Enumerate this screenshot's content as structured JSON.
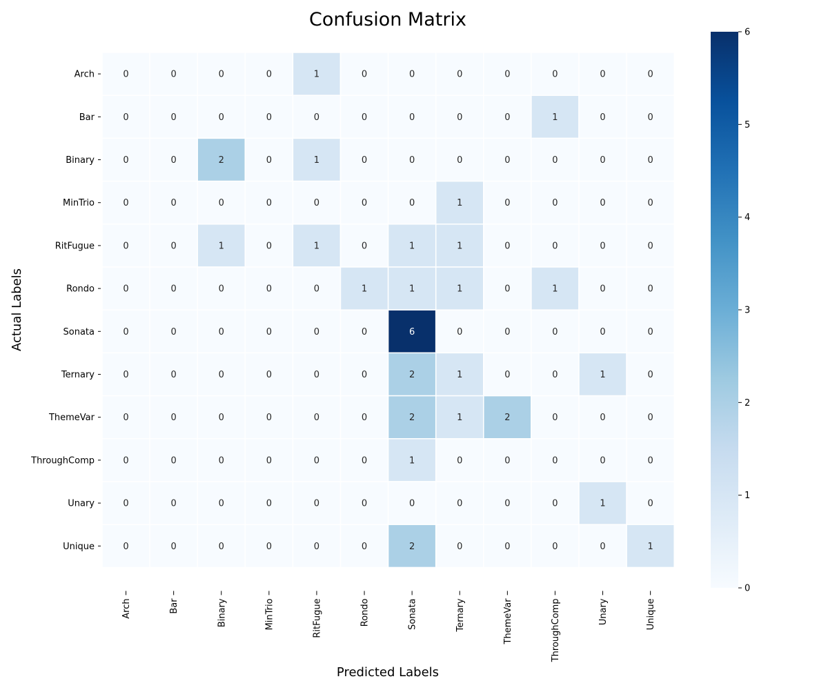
{
  "chart_data": {
    "type": "heatmap",
    "title": "Confusion Matrix",
    "xlabel": "Predicted Labels",
    "ylabel": "Actual Labels",
    "x_categories": [
      "Arch",
      "Bar",
      "Binary",
      "MinTrio",
      "RitFugue",
      "Rondo",
      "Sonata",
      "Ternary",
      "ThemeVar",
      "ThroughComp",
      "Unary",
      "Unique"
    ],
    "y_categories": [
      "Arch",
      "Bar",
      "Binary",
      "MinTrio",
      "RitFugue",
      "Rondo",
      "Sonata",
      "Ternary",
      "ThemeVar",
      "ThroughComp",
      "Unary",
      "Unique"
    ],
    "values": [
      [
        0,
        0,
        0,
        0,
        1,
        0,
        0,
        0,
        0,
        0,
        0,
        0
      ],
      [
        0,
        0,
        0,
        0,
        0,
        0,
        0,
        0,
        0,
        1,
        0,
        0
      ],
      [
        0,
        0,
        2,
        0,
        1,
        0,
        0,
        0,
        0,
        0,
        0,
        0
      ],
      [
        0,
        0,
        0,
        0,
        0,
        0,
        0,
        1,
        0,
        0,
        0,
        0
      ],
      [
        0,
        0,
        1,
        0,
        1,
        0,
        1,
        1,
        0,
        0,
        0,
        0
      ],
      [
        0,
        0,
        0,
        0,
        0,
        1,
        1,
        1,
        0,
        1,
        0,
        0
      ],
      [
        0,
        0,
        0,
        0,
        0,
        0,
        6,
        0,
        0,
        0,
        0,
        0
      ],
      [
        0,
        0,
        0,
        0,
        0,
        0,
        2,
        1,
        0,
        0,
        1,
        0
      ],
      [
        0,
        0,
        0,
        0,
        0,
        0,
        2,
        1,
        2,
        0,
        0,
        0
      ],
      [
        0,
        0,
        0,
        0,
        0,
        0,
        1,
        0,
        0,
        0,
        0,
        0
      ],
      [
        0,
        0,
        0,
        0,
        0,
        0,
        0,
        0,
        0,
        0,
        1,
        0
      ],
      [
        0,
        0,
        0,
        0,
        0,
        0,
        2,
        0,
        0,
        0,
        0,
        1
      ]
    ],
    "colorbar": {
      "min": 0,
      "max": 6,
      "ticks": [
        0,
        1,
        2,
        3,
        4,
        5,
        6
      ]
    },
    "colormap": "Blues",
    "colors": {
      "low": "#f7fbff",
      "high": "#08306b",
      "cell_border": "#ffffff",
      "text_dark": "#262626",
      "text_light": "#ffffff"
    }
  }
}
